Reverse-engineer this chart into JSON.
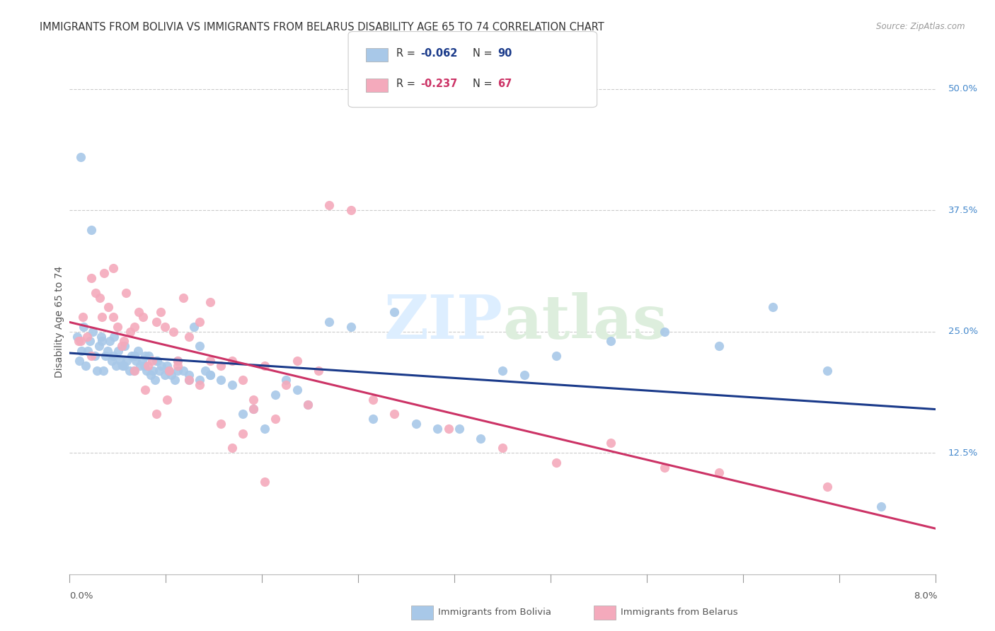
{
  "title": "IMMIGRANTS FROM BOLIVIA VS IMMIGRANTS FROM BELARUS DISABILITY AGE 65 TO 74 CORRELATION CHART",
  "source": "Source: ZipAtlas.com",
  "ylabel": "Disability Age 65 to 74",
  "x_min": 0.0,
  "x_max": 8.0,
  "y_min": 0.0,
  "y_max": 52.0,
  "y_ticks_right": [
    12.5,
    25.0,
    37.5,
    50.0
  ],
  "bolivia_color": "#a8c8e8",
  "belarus_color": "#f4aabc",
  "bolivia_line_color": "#1a3a8a",
  "belarus_line_color": "#cc3366",
  "bolivia_R": -0.062,
  "bolivia_N": 90,
  "belarus_R": -0.237,
  "belarus_N": 67,
  "watermark_zip": "ZIP",
  "watermark_atlas": "atlas",
  "background_color": "#ffffff",
  "grid_color": "#cccccc",
  "bolivia_scatter_x": [
    0.07,
    0.09,
    0.11,
    0.13,
    0.15,
    0.17,
    0.19,
    0.21,
    0.23,
    0.25,
    0.27,
    0.29,
    0.31,
    0.33,
    0.35,
    0.37,
    0.39,
    0.41,
    0.43,
    0.45,
    0.47,
    0.49,
    0.51,
    0.53,
    0.55,
    0.57,
    0.59,
    0.61,
    0.63,
    0.65,
    0.67,
    0.69,
    0.71,
    0.73,
    0.75,
    0.77,
    0.79,
    0.81,
    0.83,
    0.85,
    0.88,
    0.91,
    0.94,
    0.97,
    1.0,
    1.05,
    1.1,
    1.15,
    1.2,
    1.25,
    1.3,
    1.4,
    1.5,
    1.6,
    1.7,
    1.8,
    1.9,
    2.0,
    2.1,
    2.2,
    2.4,
    2.6,
    2.8,
    3.0,
    3.2,
    3.4,
    3.6,
    3.8,
    4.0,
    4.2,
    4.5,
    5.0,
    5.5,
    6.0,
    6.5,
    7.0,
    7.5,
    0.1,
    0.2,
    0.3,
    0.4,
    0.5,
    0.6,
    0.7,
    0.8,
    0.9,
    1.0,
    1.1,
    1.2,
    1.3
  ],
  "bolivia_scatter_y": [
    24.5,
    22.0,
    23.0,
    25.5,
    21.5,
    23.0,
    24.0,
    25.0,
    22.5,
    21.0,
    23.5,
    24.5,
    21.0,
    22.5,
    23.0,
    24.0,
    22.0,
    24.5,
    21.5,
    23.0,
    22.0,
    21.5,
    23.5,
    22.0,
    21.0,
    22.5,
    21.0,
    22.0,
    23.0,
    21.5,
    22.0,
    21.5,
    21.0,
    22.5,
    20.5,
    21.0,
    20.0,
    22.0,
    21.0,
    21.5,
    20.5,
    21.0,
    20.5,
    20.0,
    22.0,
    21.0,
    20.5,
    25.5,
    20.0,
    21.0,
    20.5,
    20.0,
    19.5,
    16.5,
    17.0,
    15.0,
    18.5,
    20.0,
    19.0,
    17.5,
    26.0,
    25.5,
    16.0,
    27.0,
    15.5,
    15.0,
    15.0,
    14.0,
    21.0,
    20.5,
    22.5,
    24.0,
    25.0,
    23.5,
    27.5,
    21.0,
    7.0,
    43.0,
    35.5,
    24.0,
    22.5,
    21.5,
    22.5,
    22.5,
    22.0,
    21.5,
    21.0,
    20.0,
    23.5,
    20.5
  ],
  "belarus_scatter_x": [
    0.08,
    0.12,
    0.16,
    0.2,
    0.24,
    0.28,
    0.32,
    0.36,
    0.4,
    0.44,
    0.48,
    0.52,
    0.56,
    0.6,
    0.64,
    0.68,
    0.72,
    0.76,
    0.8,
    0.84,
    0.88,
    0.92,
    0.96,
    1.0,
    1.05,
    1.1,
    1.2,
    1.3,
    1.4,
    1.5,
    1.6,
    1.7,
    1.8,
    2.0,
    2.2,
    2.4,
    2.6,
    2.8,
    3.0,
    3.5,
    4.0,
    4.5,
    5.0,
    5.5,
    6.0,
    7.0,
    0.1,
    0.2,
    0.3,
    0.4,
    0.5,
    0.6,
    0.7,
    0.8,
    0.9,
    1.0,
    1.1,
    1.2,
    1.3,
    1.4,
    1.5,
    1.6,
    1.7,
    1.8,
    1.9,
    2.1,
    2.3
  ],
  "belarus_scatter_y": [
    24.0,
    26.5,
    24.5,
    30.5,
    29.0,
    28.5,
    31.0,
    27.5,
    26.5,
    25.5,
    23.5,
    29.0,
    25.0,
    25.5,
    27.0,
    26.5,
    21.5,
    22.0,
    26.0,
    27.0,
    25.5,
    21.0,
    25.0,
    22.0,
    28.5,
    24.5,
    26.0,
    28.0,
    21.5,
    22.0,
    20.0,
    18.0,
    21.5,
    19.5,
    17.5,
    38.0,
    37.5,
    18.0,
    16.5,
    15.0,
    13.0,
    11.5,
    13.5,
    11.0,
    10.5,
    9.0,
    24.0,
    22.5,
    26.5,
    31.5,
    24.0,
    21.0,
    19.0,
    16.5,
    18.0,
    21.5,
    20.0,
    19.5,
    22.0,
    15.5,
    13.0,
    14.5,
    17.0,
    9.5,
    16.0,
    22.0,
    21.0
  ]
}
